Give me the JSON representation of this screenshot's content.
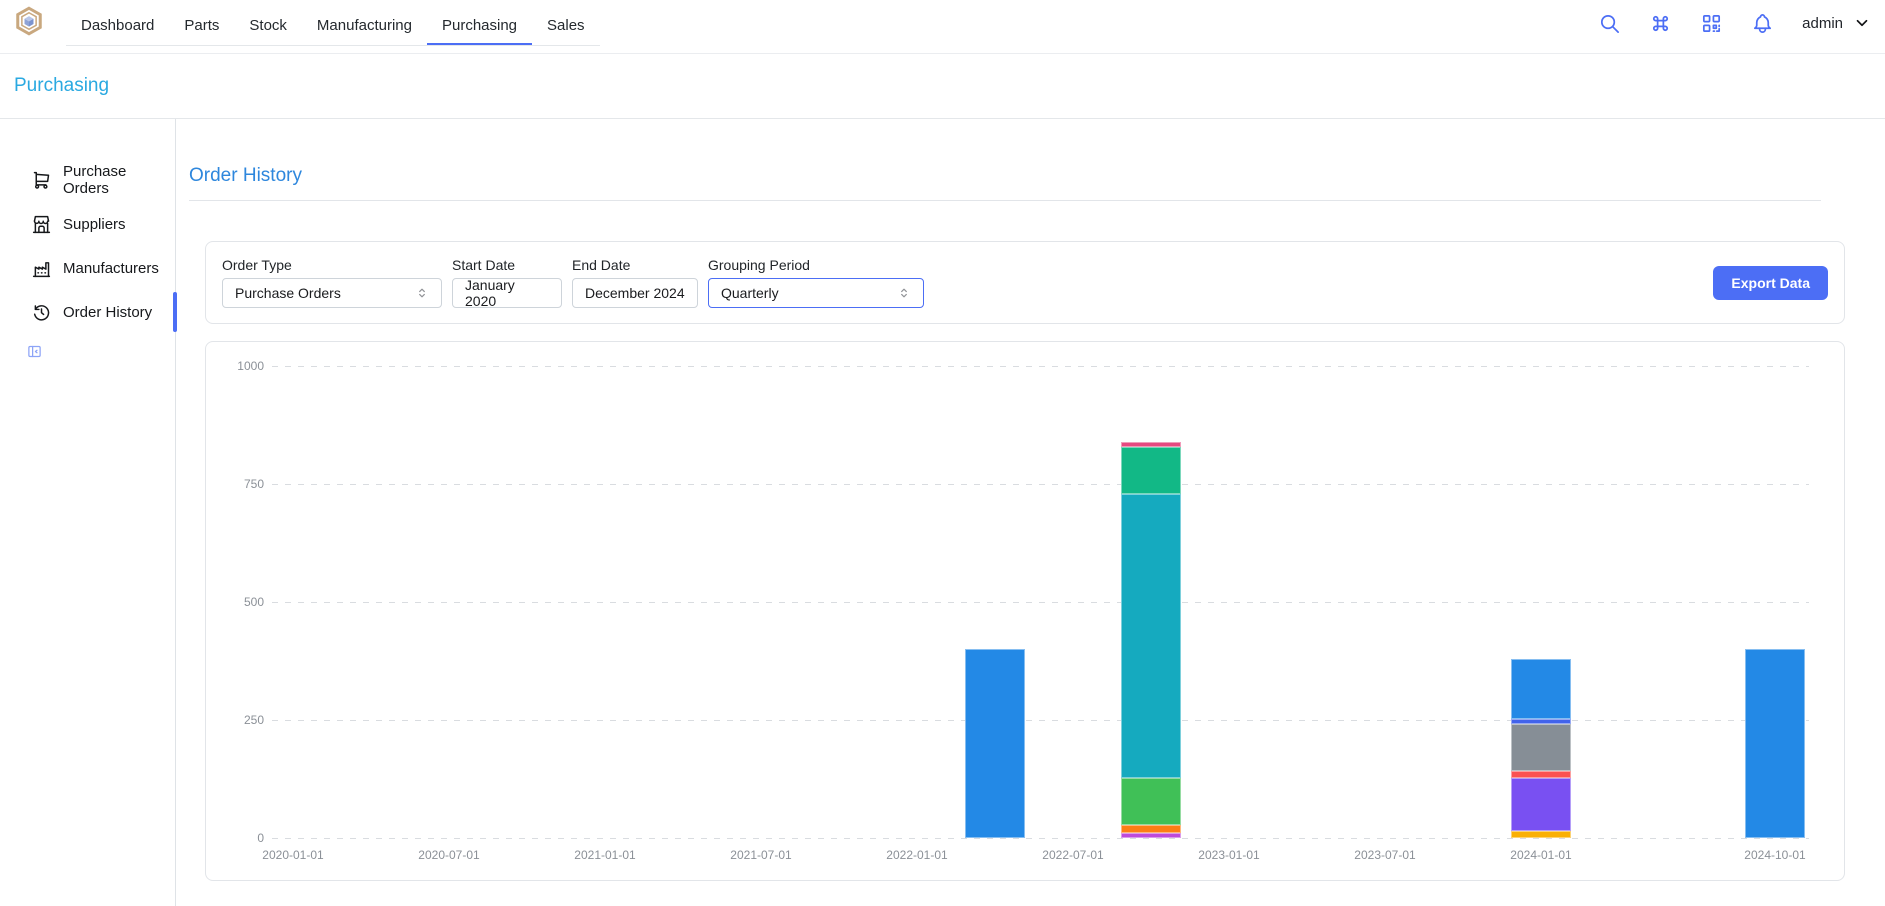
{
  "navbar": {
    "logo_icon": "inventree-logo-icon",
    "tabs": [
      {
        "label": "Dashboard"
      },
      {
        "label": "Parts"
      },
      {
        "label": "Stock"
      },
      {
        "label": "Manufacturing"
      },
      {
        "label": "Purchasing"
      },
      {
        "label": "Sales"
      }
    ],
    "active_tab": "Purchasing",
    "actions": [
      {
        "icon": "search-icon"
      },
      {
        "icon": "command-icon"
      },
      {
        "icon": "qrcode-scan-icon"
      },
      {
        "icon": "bell-icon"
      }
    ],
    "user": {
      "name": "admin",
      "icon": "chevron-down-icon"
    }
  },
  "page_header": {
    "title": "Purchasing"
  },
  "sidebar": {
    "items": [
      {
        "label": "Purchase Orders",
        "icon": "shopping-cart-icon",
        "active": false
      },
      {
        "label": "Suppliers",
        "icon": "building-store-icon",
        "active": false
      },
      {
        "label": "Manufacturers",
        "icon": "factory-icon",
        "active": false
      },
      {
        "label": "Order History",
        "icon": "history-icon",
        "active": true
      }
    ],
    "collapse_icon": "sidebar-collapse-icon"
  },
  "main": {
    "title": "Order History",
    "filters": {
      "order_type": {
        "label": "Order Type",
        "value": "Purchase Orders"
      },
      "start_date": {
        "label": "Start Date",
        "value": "January 2020"
      },
      "end_date": {
        "label": "End Date",
        "value": "December 2024"
      },
      "grouping": {
        "label": "Grouping Period",
        "value": "Quarterly",
        "focused": true
      },
      "export_label": "Export Data"
    }
  },
  "colors": {
    "accent": "#4c6ef5",
    "page_title": "#2aa9e1",
    "section_title": "#2e87dd",
    "bar_blue": "#2389e6"
  },
  "chart_data": {
    "type": "bar",
    "stacked": true,
    "title": "",
    "xlabel": "",
    "ylabel": "",
    "x_axis_type": "time",
    "grid": "horizontal-dashed",
    "legend": "none",
    "ylim": [
      0,
      1000
    ],
    "y_ticks": [
      0,
      250,
      500,
      750,
      1000
    ],
    "x_tick_labels": [
      "2020-01-01",
      "2020-07-01",
      "2021-01-01",
      "2021-07-01",
      "2022-01-01",
      "2022-07-01",
      "2023-01-01",
      "2023-07-01",
      "2024-01-01",
      "2024-10-01"
    ],
    "bars": [
      {
        "date": "2022-04-01",
        "total": 400,
        "segments": [
          {
            "color": "#2389e6",
            "value": 400
          }
        ]
      },
      {
        "date": "2022-10-01",
        "total": 840,
        "segments": [
          {
            "color": "#be4bdb",
            "value": 10
          },
          {
            "color": "#fd7e14",
            "value": 18
          },
          {
            "color": "#40c057",
            "value": 100
          },
          {
            "color": "#15aabf",
            "value": 600
          },
          {
            "color": "#12b886",
            "value": 100
          },
          {
            "color": "#e64980",
            "value": 12
          }
        ]
      },
      {
        "date": "2024-01-01",
        "total": 380,
        "segments": [
          {
            "color": "#fab005",
            "value": 15
          },
          {
            "color": "#7950f2",
            "value": 112
          },
          {
            "color": "#fa5252",
            "value": 15
          },
          {
            "color": "#868e96",
            "value": 100
          },
          {
            "color": "#4263eb",
            "value": 10
          },
          {
            "color": "#2389e6",
            "value": 128
          }
        ]
      },
      {
        "date": "2024-10-01",
        "total": 400,
        "segments": [
          {
            "color": "#2389e6",
            "value": 400
          }
        ]
      }
    ]
  }
}
